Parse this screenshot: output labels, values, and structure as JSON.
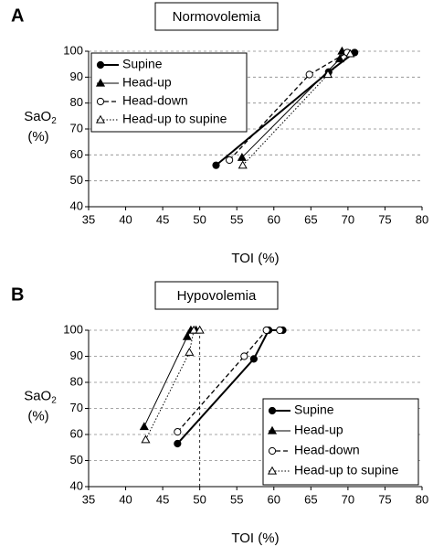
{
  "chart_data": [
    {
      "type": "line",
      "panel": "A",
      "title": "Normovolemia",
      "xlabel": "TOI (%)",
      "ylabel": {
        "text": "SaO",
        "subscript": "2",
        "unit": "(%)"
      },
      "xlim": [
        35,
        80
      ],
      "xticks": [
        35,
        40,
        45,
        50,
        55,
        60,
        65,
        70,
        75,
        80
      ],
      "ylim": [
        40,
        100
      ],
      "yticks": [
        40,
        50,
        60,
        70,
        80,
        90,
        100
      ],
      "grid": true,
      "legend": "upper left",
      "series": [
        {
          "name": "Supine",
          "color": "#000000",
          "dash": "solid",
          "width": 2,
          "marker": "circle",
          "filled": true,
          "x": [
            52.2,
            67.4,
            70.9
          ],
          "values": [
            56,
            92,
            99.5
          ]
        },
        {
          "name": "Head-up",
          "color": "#000000",
          "dash": "solid",
          "width": 1,
          "marker": "triangle",
          "filled": true,
          "x": [
            55.7,
            68.9,
            69.2
          ],
          "values": [
            59,
            97,
            100
          ]
        },
        {
          "name": "Head-down",
          "color": "#000000",
          "dash": "dashed",
          "width": 1.3,
          "marker": "circle",
          "filled": false,
          "x": [
            54,
            64.8,
            69.9
          ],
          "values": [
            58,
            91,
            99.5
          ]
        },
        {
          "name": "Head-up to supine",
          "color": "#000000",
          "dash": "dotted",
          "width": 1,
          "marker": "triangle",
          "filled": false,
          "x": [
            55.8,
            67.3,
            70.3
          ],
          "values": [
            56,
            91,
            99
          ]
        }
      ]
    },
    {
      "type": "line",
      "panel": "B",
      "title": "Hypovolemia",
      "xlabel": "TOI (%)",
      "ylabel": {
        "text": "SaO",
        "subscript": "2",
        "unit": "(%)"
      },
      "xlim": [
        35,
        80
      ],
      "xticks": [
        35,
        40,
        45,
        50,
        55,
        60,
        65,
        70,
        75,
        80
      ],
      "ylim": [
        40,
        100
      ],
      "yticks": [
        40,
        50,
        60,
        70,
        80,
        90,
        100
      ],
      "grid": true,
      "legend": "lower right",
      "vline": 50,
      "series": [
        {
          "name": "Supine",
          "color": "#000000",
          "dash": "solid",
          "width": 2,
          "marker": "circle",
          "filled": true,
          "x": [
            47,
            57.3,
            59.3,
            61.2
          ],
          "values": [
            56.5,
            89,
            100,
            100
          ]
        },
        {
          "name": "Head-up",
          "color": "#000000",
          "dash": "solid",
          "width": 1,
          "marker": "triangle",
          "filled": true,
          "x": [
            42.5,
            48.3,
            48.8,
            49.5
          ],
          "values": [
            63,
            97.5,
            100,
            100
          ]
        },
        {
          "name": "Head-down",
          "color": "#000000",
          "dash": "dashed",
          "width": 1.3,
          "marker": "circle",
          "filled": false,
          "x": [
            47,
            56,
            59,
            60.8
          ],
          "values": [
            61,
            90,
            100,
            100
          ]
        },
        {
          "name": "Head-up to supine",
          "color": "#000000",
          "dash": "dotted",
          "width": 1,
          "marker": "triangle",
          "filled": false,
          "x": [
            42.7,
            48.6,
            49.2,
            50
          ],
          "values": [
            58,
            91.5,
            100,
            100
          ]
        }
      ]
    }
  ]
}
